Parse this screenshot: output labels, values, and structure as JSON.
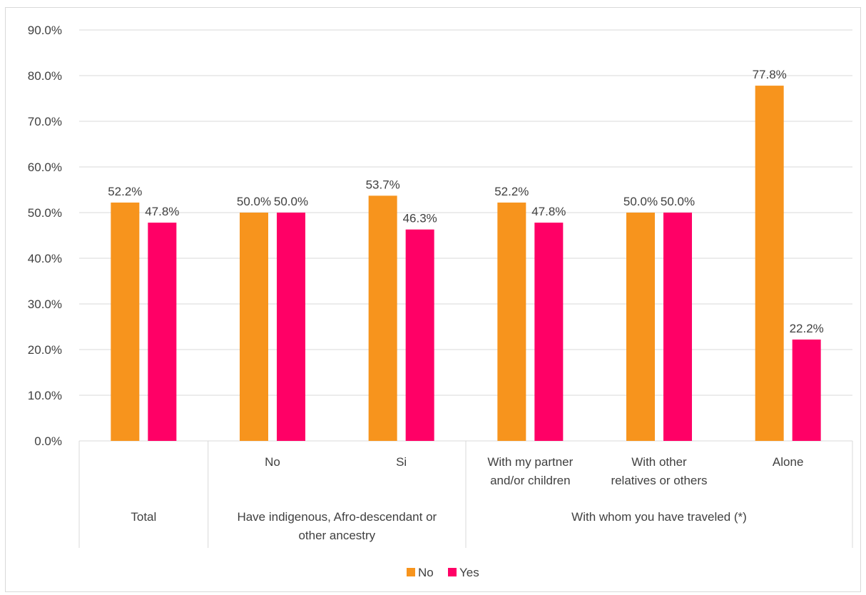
{
  "chart_data": {
    "type": "bar",
    "categories": [
      "Total",
      "No",
      "Si",
      "With my partner and/or children",
      "With other relatives or others",
      "Alone"
    ],
    "category_lines": [
      [
        "Total"
      ],
      [
        "No"
      ],
      [
        "Si"
      ],
      [
        "With my partner",
        "and/or children"
      ],
      [
        "With other",
        "relatives or others"
      ],
      [
        "Alone"
      ]
    ],
    "groups": [
      {
        "label_lines": [
          "Total"
        ],
        "label": "Total",
        "categories": [
          "Total"
        ]
      },
      {
        "label_lines": [
          "Have indigenous, Afro-descendant or",
          "other ancestry"
        ],
        "label": "Have indigenous, Afro-descendant or other ancestry",
        "categories": [
          "No",
          "Si"
        ]
      },
      {
        "label_lines": [
          "With whom you have traveled (*)"
        ],
        "label": "With whom you have traveled (*)",
        "categories": [
          "With my partner and/or children",
          "With other relatives or others",
          "Alone"
        ]
      }
    ],
    "series": [
      {
        "name": "No",
        "color": "#F7941D",
        "values": [
          52.2,
          50.0,
          53.7,
          52.2,
          50.0,
          77.8
        ],
        "labels": [
          "52.2%",
          "50.0%",
          "53.7%",
          "52.2%",
          "50.0%",
          "77.8%"
        ]
      },
      {
        "name": "Yes",
        "color": "#FF0066",
        "values": [
          47.8,
          50.0,
          46.3,
          47.8,
          50.0,
          22.2
        ],
        "labels": [
          "47.8%",
          "50.0%",
          "46.3%",
          "47.8%",
          "50.0%",
          "22.2%"
        ]
      }
    ],
    "ylim": [
      0,
      90
    ],
    "yticks": [
      "0.0%",
      "10.0%",
      "20.0%",
      "30.0%",
      "40.0%",
      "50.0%",
      "60.0%",
      "70.0%",
      "80.0%",
      "90.0%"
    ],
    "ytick_values": [
      0,
      10,
      20,
      30,
      40,
      50,
      60,
      70,
      80,
      90
    ],
    "grid": true,
    "legend": "bottom-center",
    "title": "",
    "xlabel": "",
    "ylabel": ""
  }
}
